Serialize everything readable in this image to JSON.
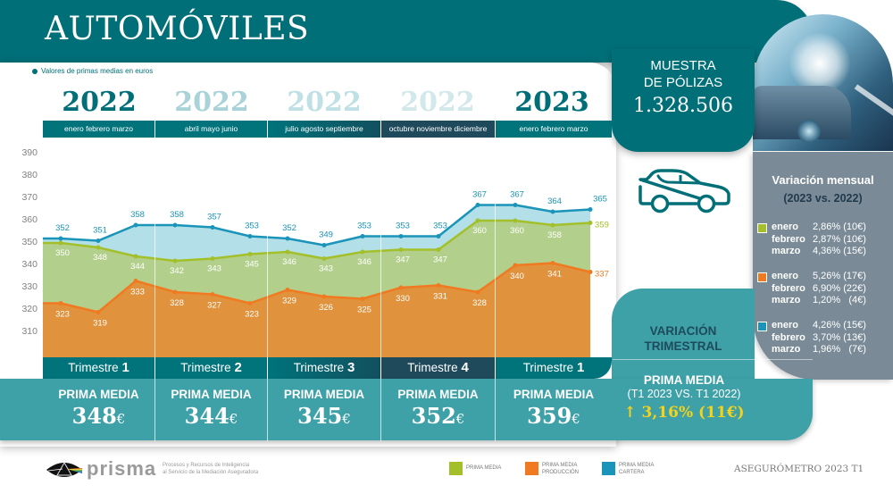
{
  "page": {
    "title": "AUTOMÓVILES",
    "note": "Valores de primas medias en euros"
  },
  "muestra": {
    "label_line1": "MUESTRA",
    "label_line2": "DE PÓLIZAS",
    "value": "1.328.506"
  },
  "columns": [
    {
      "year": "2022",
      "months": "enero  febrero  marzo",
      "trimestre_label": "Trimestre",
      "trimestre_num": "1",
      "prima_label": "PRIMA MEDIA",
      "prima_value": "348",
      "currency": "€"
    },
    {
      "year": "2022",
      "months": "abril  mayo  junio",
      "trimestre_label": "Trimestre",
      "trimestre_num": "2",
      "prima_label": "PRIMA MEDIA",
      "prima_value": "344",
      "currency": "€"
    },
    {
      "year": "2022",
      "months": "julio  agosto  septiembre",
      "trimestre_label": "Trimestre",
      "trimestre_num": "3",
      "prima_label": "PRIMA MEDIA",
      "prima_value": "345",
      "currency": "€"
    },
    {
      "year": "2022",
      "months": "octubre  noviembre  diciembre",
      "trimestre_label": "Trimestre",
      "trimestre_num": "4",
      "prima_label": "PRIMA MEDIA",
      "prima_value": "352",
      "currency": "€"
    },
    {
      "year": "2023",
      "months": "enero  febrero  marzo",
      "trimestre_label": "Trimestre",
      "trimestre_num": "1",
      "prima_label": "PRIMA MEDIA",
      "prima_value": "359",
      "currency": "€"
    }
  ],
  "variacion_trimestral": {
    "title_line1": "VARIACIÓN",
    "title_line2": "TRIMESTRAL",
    "label": "PRIMA MEDIA",
    "sub": "(T1 2023 VS. T1 2022)",
    "arrow_icon": "↑",
    "value": "3,16% (11€)"
  },
  "variacion_mensual": {
    "title": "Variación mensual",
    "subtitle": "(2023 vs. 2022)",
    "groups": [
      {
        "series": "PRIMA MEDIA",
        "color": "#a3c02a",
        "rows": [
          {
            "month": "enero",
            "value": "2,86% (10€)"
          },
          {
            "month": "febrero",
            "value": "2,87% (10€)"
          },
          {
            "month": "marzo",
            "value": "4,36% (15€)"
          }
        ]
      },
      {
        "series": "PRIMA MEDIA PRODUCCIÓN",
        "color": "#f07a21",
        "rows": [
          {
            "month": "enero",
            "value": "5,26% (17€)"
          },
          {
            "month": "febrero",
            "value": "6,90% (22€)"
          },
          {
            "month": "marzo",
            "value": "1,20%   (4€)"
          }
        ]
      },
      {
        "series": "PRIMA MEDIA CARTERA",
        "color": "#1a94b8",
        "rows": [
          {
            "month": "enero",
            "value": "4,26% (15€)"
          },
          {
            "month": "febrero",
            "value": "3,70% (13€)"
          },
          {
            "month": "marzo",
            "value": "1,96%   (7€)"
          }
        ]
      }
    ]
  },
  "footer": {
    "brand": "prisma",
    "tagline_line1": "Procesos y Recursos de Inteligencia",
    "tagline_line2": "al Servicio de la Mediación Aseguradora",
    "legend": [
      {
        "line1": "PRIMA MEDIA",
        "line2": "",
        "color": "#a3c02a"
      },
      {
        "line1": "PRIMA MEDIA",
        "line2": "PRODUCCIÓN",
        "color": "#f07a21"
      },
      {
        "line1": "PRIMA MEDIA",
        "line2": "CARTERA",
        "color": "#1a94b8"
      }
    ],
    "report": "ASEGURÓMETRO 2023 T1"
  },
  "colors": {
    "header": "#006f78",
    "band": "#3ea1a8",
    "q4_dark": "#1f4a5c",
    "yellow": "#f5d31a"
  },
  "chart_data": {
    "type": "area",
    "title": "AUTOMÓVILES",
    "subtitle": "Valores de primas medias en euros",
    "xlabel": "",
    "ylabel": "",
    "ylim": [
      300,
      390
    ],
    "y_ticks": [
      310,
      320,
      330,
      340,
      350,
      360,
      370,
      380,
      390
    ],
    "grid": false,
    "legend_position": "bottom",
    "categories": [
      "ene 2022",
      "feb 2022",
      "mar 2022",
      "abr 2022",
      "may 2022",
      "jun 2022",
      "jul 2022",
      "ago 2022",
      "sep 2022",
      "oct 2022",
      "nov 2022",
      "dic 2022",
      "ene 2023",
      "feb 2023",
      "mar 2023"
    ],
    "series": [
      {
        "name": "PRIMA MEDIA CARTERA",
        "color": "#1a94b8",
        "fill": "#b2dfe8",
        "label_color": "#1a94b8",
        "values": [
          352,
          351,
          358,
          358,
          357,
          353,
          352,
          349,
          353,
          353,
          353,
          367,
          367,
          364,
          365
        ]
      },
      {
        "name": "PRIMA MEDIA",
        "color": "#a3c02a",
        "fill": "#b3cf8c",
        "label_color": "#ffffff",
        "values": [
          350,
          348,
          344,
          342,
          343,
          345,
          346,
          343,
          346,
          347,
          347,
          360,
          360,
          358,
          359
        ]
      },
      {
        "name": "PRIMA MEDIA PRODUCCIÓN",
        "color": "#f07a21",
        "fill": "#e0923d",
        "label_color": "#ffffff",
        "values": [
          323,
          319,
          333,
          328,
          327,
          323,
          329,
          326,
          325,
          330,
          331,
          328,
          340,
          341,
          337
        ]
      }
    ]
  }
}
